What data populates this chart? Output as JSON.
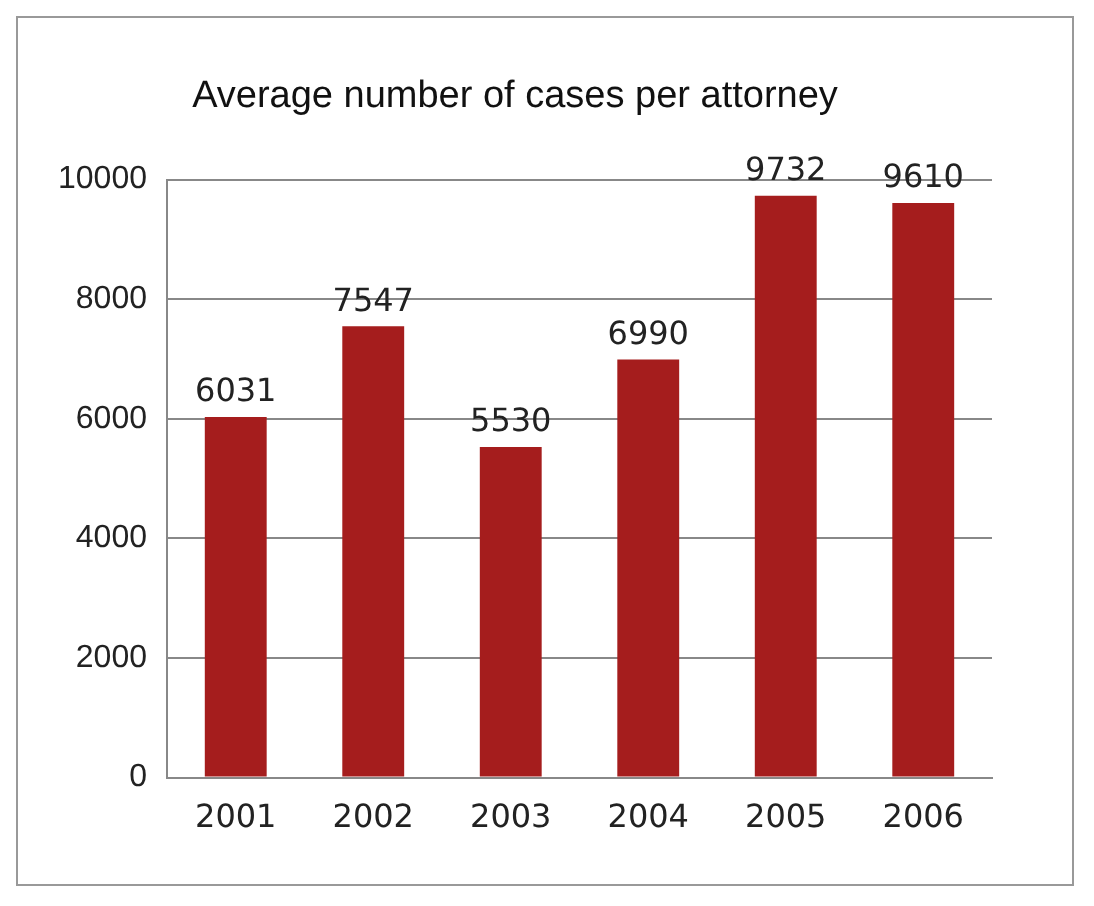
{
  "chart_data": {
    "type": "bar",
    "title": "Average number of cases per attorney",
    "categories": [
      "2001",
      "2002",
      "2003",
      "2004",
      "2005",
      "2006"
    ],
    "values": [
      6031,
      7547,
      5530,
      6990,
      9732,
      9610
    ],
    "color": "#a51d1d",
    "ylim": [
      0,
      10000
    ],
    "yticks": [
      0,
      2000,
      4000,
      6000,
      8000,
      10000
    ],
    "grid": "y",
    "data_labels": true
  }
}
